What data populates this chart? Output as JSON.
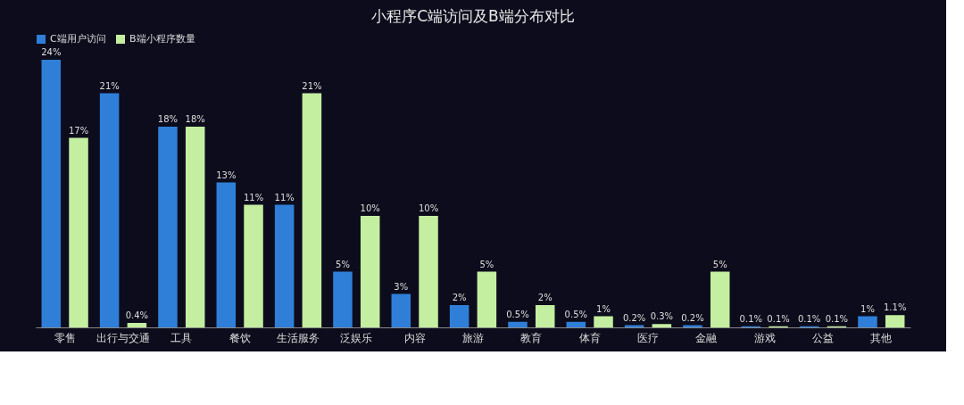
{
  "chart_data": {
    "type": "bar",
    "title": "小程序C端访问及B端分布对比",
    "categories": [
      "零售",
      "出行与交通",
      "工具",
      "餐饮",
      "生活服务",
      "泛娱乐",
      "内容",
      "旅游",
      "教育",
      "体育",
      "医疗",
      "金融",
      "游戏",
      "公益",
      "其他"
    ],
    "series": [
      {
        "name": "C端用户访问",
        "color": "#2f7fd8",
        "values": [
          24,
          21,
          18,
          13,
          11,
          5,
          3,
          2,
          0.5,
          0.5,
          0.2,
          0.2,
          0.1,
          0.1,
          1
        ],
        "value_labels": [
          "24%",
          "21%",
          "18%",
          "13%",
          "11%",
          "5%",
          "3%",
          "2%",
          "0.5%",
          "0.5%",
          "0.2%",
          "0.2%",
          "0.1%",
          "0.1%",
          "1%"
        ]
      },
      {
        "name": "B端小程序数量",
        "color": "#c4eea0",
        "values": [
          17,
          0.4,
          18,
          11,
          21,
          10,
          10,
          5,
          2,
          1,
          0.3,
          5,
          0.1,
          0.1,
          1.1
        ],
        "value_labels": [
          "17%",
          "0.4%",
          "18%",
          "11%",
          "21%",
          "10%",
          "10%",
          "5%",
          "2%",
          "1%",
          "0.3%",
          "5%",
          "0.1%",
          "0.1%",
          "1.1%"
        ]
      }
    ],
    "legend": "top",
    "grid": false
  }
}
